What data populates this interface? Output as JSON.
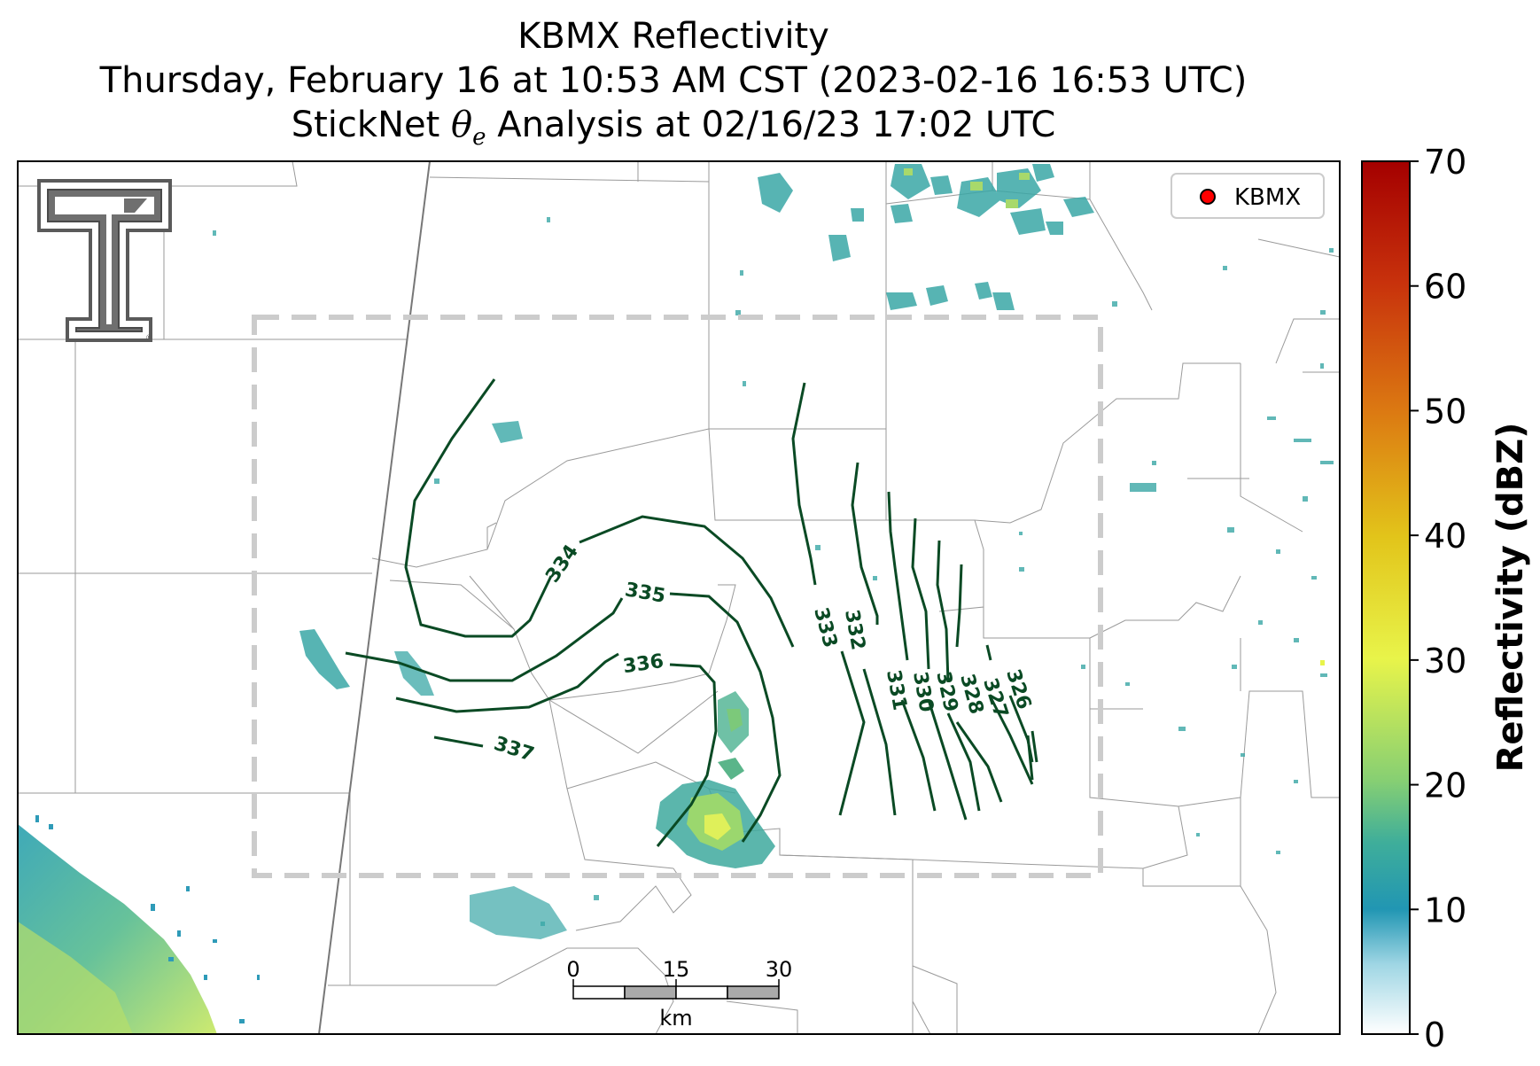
{
  "title": {
    "line1": "KBMX Reflectivity",
    "line2": "Thursday, February 16 at 10:53 AM CST (2023-02-16 16:53 UTC)",
    "line3_prefix": "StickNet ",
    "line3_symbol": "θ",
    "line3_subscript": "e",
    "line3_suffix": " Analysis at 02/16/23 17:02 UTC"
  },
  "legend": {
    "label": "KBMX",
    "marker_color": "#ff0000"
  },
  "colorbar": {
    "label": "Reflectivity (dBZ)",
    "ticks": [
      "0",
      "10",
      "20",
      "30",
      "40",
      "50",
      "60",
      "70"
    ],
    "stops": [
      "#ffffff",
      "#2196b3",
      "#3fae9a",
      "#86cf73",
      "#e8f44a",
      "#e8c51a",
      "#e07b10",
      "#c8320c",
      "#a80000"
    ]
  },
  "scalebar": {
    "ticks": [
      "0",
      "15",
      "30"
    ],
    "unit": "km"
  },
  "contour_labels": [
    "326",
    "327",
    "328",
    "329",
    "330",
    "331",
    "332",
    "333",
    "334",
    "335",
    "336",
    "337"
  ],
  "contour_color": "#0a4a24",
  "logo": {
    "name": "texas-tech-double-t"
  }
}
